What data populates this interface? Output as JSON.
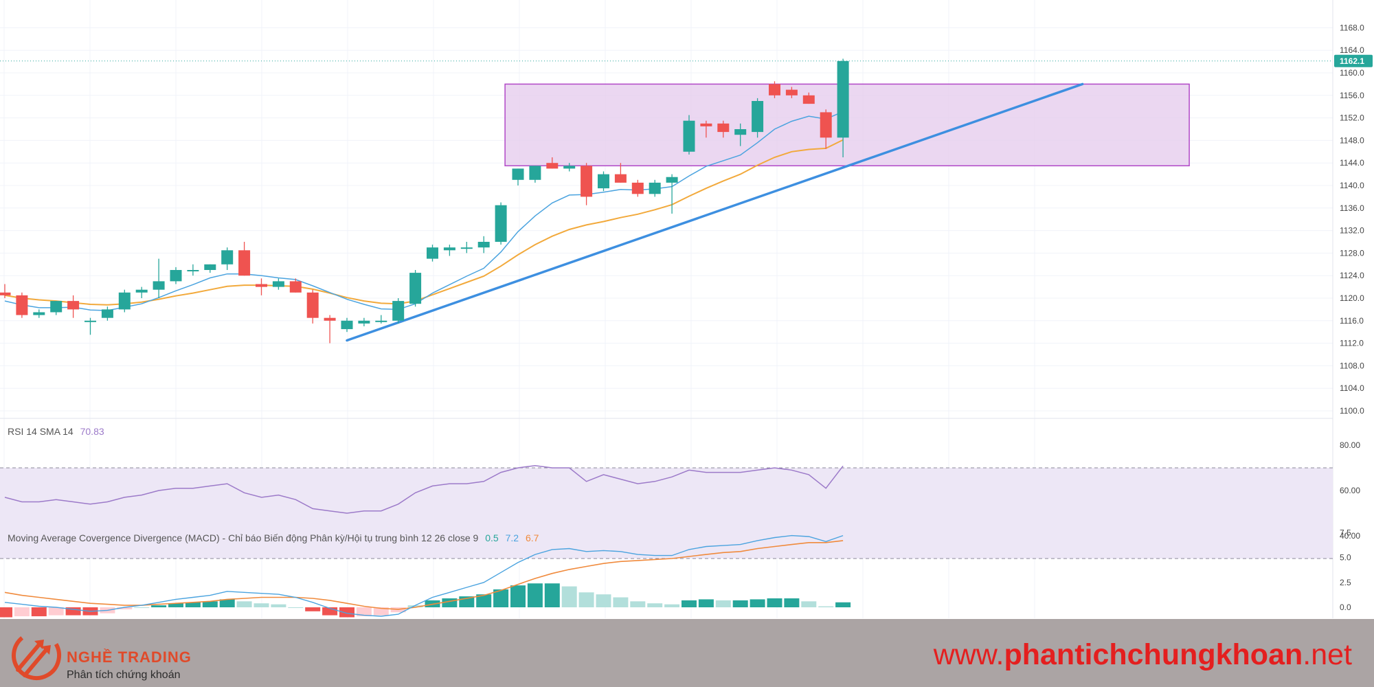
{
  "chart_data": {
    "type": "candlestick",
    "price_axis": {
      "ticks": [
        "1168.0",
        "1164.0",
        "1160.0",
        "1156.0",
        "1152.0",
        "1148.0",
        "1144.0",
        "1140.0",
        "1136.0",
        "1132.0",
        "1128.0",
        "1124.0",
        "1120.0",
        "1116.0",
        "1112.0",
        "1108.0",
        "1104.0",
        "1100.0"
      ],
      "last_price_label": "1162.1",
      "last_price": 1162.1
    },
    "candles": [
      {
        "o": 1121.0,
        "h": 1122.5,
        "l": 1120.0,
        "c": 1120.5
      },
      {
        "o": 1120.5,
        "h": 1121.0,
        "l": 1116.5,
        "c": 1117.0
      },
      {
        "o": 1117.0,
        "h": 1118.0,
        "l": 1116.5,
        "c": 1117.5
      },
      {
        "o": 1117.5,
        "h": 1119.5,
        "l": 1117.0,
        "c": 1119.5
      },
      {
        "o": 1119.5,
        "h": 1120.5,
        "l": 1116.5,
        "c": 1118.0
      },
      {
        "o": 1116.0,
        "h": 1116.5,
        "l": 1113.5,
        "c": 1116.0
      },
      {
        "o": 1116.5,
        "h": 1118.5,
        "l": 1116.0,
        "c": 1118.0
      },
      {
        "o": 1118.0,
        "h": 1121.5,
        "l": 1117.5,
        "c": 1121.0
      },
      {
        "o": 1121.0,
        "h": 1122.0,
        "l": 1120.0,
        "c": 1121.5
      },
      {
        "o": 1121.5,
        "h": 1127.0,
        "l": 1120.0,
        "c": 1123.0
      },
      {
        "o": 1123.0,
        "h": 1125.5,
        "l": 1122.5,
        "c": 1125.0
      },
      {
        "o": 1125.0,
        "h": 1126.0,
        "l": 1124.0,
        "c": 1125.0
      },
      {
        "o": 1125.0,
        "h": 1126.0,
        "l": 1124.5,
        "c": 1126.0
      },
      {
        "o": 1126.0,
        "h": 1129.0,
        "l": 1125.0,
        "c": 1128.5
      },
      {
        "o": 1128.5,
        "h": 1130.0,
        "l": 1124.0,
        "c": 1124.0
      },
      {
        "o": 1122.5,
        "h": 1123.5,
        "l": 1120.5,
        "c": 1122.0
      },
      {
        "o": 1122.0,
        "h": 1123.5,
        "l": 1121.5,
        "c": 1123.0
      },
      {
        "o": 1123.0,
        "h": 1123.5,
        "l": 1121.0,
        "c": 1121.0
      },
      {
        "o": 1121.0,
        "h": 1121.5,
        "l": 1115.5,
        "c": 1116.5
      },
      {
        "o": 1116.5,
        "h": 1117.0,
        "l": 1112.0,
        "c": 1116.0
      },
      {
        "o": 1114.5,
        "h": 1116.5,
        "l": 1114.0,
        "c": 1116.0
      },
      {
        "o": 1115.5,
        "h": 1116.5,
        "l": 1115.0,
        "c": 1116.0
      },
      {
        "o": 1116.0,
        "h": 1117.0,
        "l": 1115.5,
        "c": 1116.0
      },
      {
        "o": 1116.0,
        "h": 1120.0,
        "l": 1115.5,
        "c": 1119.5
      },
      {
        "o": 1119.0,
        "h": 1125.0,
        "l": 1118.5,
        "c": 1124.5
      },
      {
        "o": 1127.0,
        "h": 1129.5,
        "l": 1126.5,
        "c": 1129.0
      },
      {
        "o": 1128.5,
        "h": 1129.5,
        "l": 1127.5,
        "c": 1129.0
      },
      {
        "o": 1129.0,
        "h": 1130.0,
        "l": 1128.0,
        "c": 1129.0
      },
      {
        "o": 1129.0,
        "h": 1131.0,
        "l": 1128.0,
        "c": 1130.0
      },
      {
        "o": 1130.0,
        "h": 1137.0,
        "l": 1129.5,
        "c": 1136.5
      },
      {
        "o": 1141.0,
        "h": 1143.0,
        "l": 1140.0,
        "c": 1143.0
      },
      {
        "o": 1141.0,
        "h": 1143.5,
        "l": 1140.5,
        "c": 1143.5
      },
      {
        "o": 1144.0,
        "h": 1145.0,
        "l": 1143.0,
        "c": 1143.0
      },
      {
        "o": 1143.0,
        "h": 1144.0,
        "l": 1142.5,
        "c": 1143.5
      },
      {
        "o": 1143.5,
        "h": 1144.0,
        "l": 1136.5,
        "c": 1138.0
      },
      {
        "o": 1139.5,
        "h": 1142.5,
        "l": 1139.0,
        "c": 1142.0
      },
      {
        "o": 1142.0,
        "h": 1144.0,
        "l": 1140.5,
        "c": 1140.5
      },
      {
        "o": 1140.5,
        "h": 1141.0,
        "l": 1138.0,
        "c": 1138.5
      },
      {
        "o": 1138.5,
        "h": 1141.0,
        "l": 1138.0,
        "c": 1140.5
      },
      {
        "o": 1140.5,
        "h": 1142.0,
        "l": 1135.0,
        "c": 1141.5
      },
      {
        "o": 1146.0,
        "h": 1152.5,
        "l": 1145.5,
        "c": 1151.5
      },
      {
        "o": 1151.0,
        "h": 1151.5,
        "l": 1148.5,
        "c": 1150.5
      },
      {
        "o": 1151.0,
        "h": 1151.5,
        "l": 1148.5,
        "c": 1149.5
      },
      {
        "o": 1149.0,
        "h": 1151.0,
        "l": 1147.0,
        "c": 1150.0
      },
      {
        "o": 1149.5,
        "h": 1155.5,
        "l": 1148.5,
        "c": 1155.0
      },
      {
        "o": 1158.0,
        "h": 1158.5,
        "l": 1155.5,
        "c": 1156.0
      },
      {
        "o": 1157.0,
        "h": 1157.5,
        "l": 1155.5,
        "c": 1156.0
      },
      {
        "o": 1156.0,
        "h": 1156.5,
        "l": 1154.5,
        "c": 1154.5
      },
      {
        "o": 1153.0,
        "h": 1153.5,
        "l": 1146.5,
        "c": 1148.5
      },
      {
        "o": 1148.5,
        "h": 1162.5,
        "l": 1145.0,
        "c": 1162.1
      }
    ],
    "ma_fast": [
      1119.5,
      1118.8,
      1118.3,
      1118.3,
      1118.4,
      1117.9,
      1117.8,
      1118.4,
      1119.0,
      1120.1,
      1121.3,
      1122.4,
      1123.6,
      1124.3,
      1124.3,
      1124.0,
      1123.6,
      1123.3,
      1122.2,
      1121.0,
      1119.8,
      1118.9,
      1118.1,
      1118.0,
      1119.0,
      1120.9,
      1122.4,
      1123.9,
      1125.3,
      1128.2,
      1131.8,
      1134.6,
      1136.9,
      1138.3,
      1138.4,
      1138.8,
      1139.3,
      1139.2,
      1139.4,
      1139.8,
      1141.7,
      1143.4,
      1144.4,
      1145.4,
      1147.6,
      1150.0,
      1151.4,
      1152.3,
      1151.8,
      1153.1
    ],
    "ma_slow": [
      1120.5,
      1120.0,
      1119.7,
      1119.5,
      1119.2,
      1118.9,
      1118.8,
      1119.0,
      1119.3,
      1119.8,
      1120.4,
      1120.9,
      1121.5,
      1122.1,
      1122.3,
      1122.3,
      1122.2,
      1122.1,
      1121.6,
      1120.9,
      1120.1,
      1119.5,
      1119.1,
      1119.0,
      1119.5,
      1120.6,
      1121.7,
      1122.8,
      1123.9,
      1125.7,
      1127.7,
      1129.5,
      1131.0,
      1132.2,
      1133.0,
      1133.6,
      1134.3,
      1134.9,
      1135.7,
      1136.6,
      1138.1,
      1139.5,
      1140.8,
      1142.0,
      1143.6,
      1145.0,
      1146.0,
      1146.4,
      1146.6,
      1148.1
    ],
    "rsi": {
      "label": "RSI 14 SMA 14",
      "value_label": "70.83",
      "axis_ticks": [
        "80.00",
        "60.00",
        "40.00"
      ],
      "values": [
        57,
        55,
        55,
        56,
        55,
        54,
        55,
        57,
        58,
        60,
        61,
        61,
        62,
        63,
        59,
        57,
        58,
        56,
        52,
        51,
        50,
        51,
        51,
        54,
        59,
        62,
        63,
        63,
        64,
        68,
        70,
        71,
        70,
        70,
        64,
        67,
        65,
        63,
        64,
        66,
        69,
        68,
        68,
        68,
        69,
        70,
        69,
        67,
        61,
        70.83
      ]
    },
    "macd": {
      "label": "Moving Average Covergence Divergence (MACD) - Chỉ báo Biến động Phân kỳ/Hội tụ trung bình 12 26 close 9",
      "values": [
        "0.5",
        "7.2",
        "6.7"
      ],
      "axis_ticks": [
        "7.5",
        "5.0",
        "2.5",
        "0.0"
      ],
      "macd_line": [
        0.5,
        0.3,
        0.1,
        0.0,
        -0.2,
        -0.4,
        -0.3,
        0.0,
        0.2,
        0.5,
        0.8,
        1.0,
        1.2,
        1.6,
        1.5,
        1.4,
        1.3,
        1.0,
        0.5,
        -0.1,
        -0.6,
        -0.8,
        -0.9,
        -0.7,
        0.2,
        1.0,
        1.5,
        2.0,
        2.5,
        3.5,
        4.5,
        5.3,
        5.8,
        5.9,
        5.6,
        5.7,
        5.6,
        5.3,
        5.2,
        5.2,
        5.8,
        6.1,
        6.2,
        6.3,
        6.7,
        7.0,
        7.2,
        7.1,
        6.6,
        7.2
      ],
      "signal_line": [
        1.5,
        1.2,
        1.0,
        0.8,
        0.6,
        0.4,
        0.3,
        0.2,
        0.2,
        0.3,
        0.4,
        0.5,
        0.6,
        0.8,
        0.9,
        1.0,
        1.0,
        1.0,
        0.9,
        0.7,
        0.4,
        0.1,
        -0.1,
        -0.2,
        0.0,
        0.3,
        0.6,
        0.9,
        1.2,
        1.7,
        2.3,
        2.9,
        3.4,
        3.8,
        4.1,
        4.4,
        4.6,
        4.7,
        4.8,
        4.9,
        5.1,
        5.3,
        5.5,
        5.6,
        5.9,
        6.1,
        6.3,
        6.5,
        6.5,
        6.7
      ],
      "histogram": [
        -1.0,
        -0.9,
        -0.9,
        -0.8,
        -0.8,
        -0.8,
        -0.6,
        -0.2,
        0.0,
        0.2,
        0.4,
        0.5,
        0.6,
        0.8,
        0.6,
        0.4,
        0.3,
        0.0,
        -0.4,
        -0.8,
        -1.0,
        -0.9,
        -0.8,
        -0.5,
        0.2,
        0.7,
        0.9,
        1.1,
        1.3,
        1.8,
        2.2,
        2.4,
        2.4,
        2.1,
        1.5,
        1.3,
        1.0,
        0.6,
        0.4,
        0.3,
        0.7,
        0.8,
        0.7,
        0.7,
        0.8,
        0.9,
        0.9,
        0.6,
        0.1,
        0.5
      ]
    },
    "drawings": {
      "rectangle": {
        "x_from": 29,
        "x_to": 69,
        "price_top": 1158.0,
        "price_bottom": 1143.5
      },
      "trendline": {
        "from": {
          "i": 20,
          "price": 1112.5
        },
        "to": {
          "i": 63,
          "price": 1158.0
        }
      }
    },
    "colors": {
      "up": "#26a69a",
      "down": "#ef5350",
      "ma_fast": "#4aa3df",
      "ma_slow": "#f2a93b",
      "trendline": "#3d8fe0",
      "rect_fill": "#e6cdee",
      "rect_border": "#b147c7",
      "rsi_line": "#9c7ac9",
      "rsi_band": "#ede7f6",
      "macd_line": "#4aa3df",
      "signal_line": "#f08a3c",
      "hist_pos_strong": "#26a69a",
      "hist_pos_weak": "#b2dfdb",
      "hist_neg_strong": "#ef5350",
      "hist_neg_weak": "#ffcdd2",
      "last_price_tag": "#26a69a"
    }
  },
  "footer": {
    "brand_name": "NGHỀ TRADING",
    "brand_tagline": "Phân tích chứng khoán",
    "url_prefix": "www.",
    "url_domain": "phantichchungkhoan",
    "url_suffix": ".net"
  }
}
